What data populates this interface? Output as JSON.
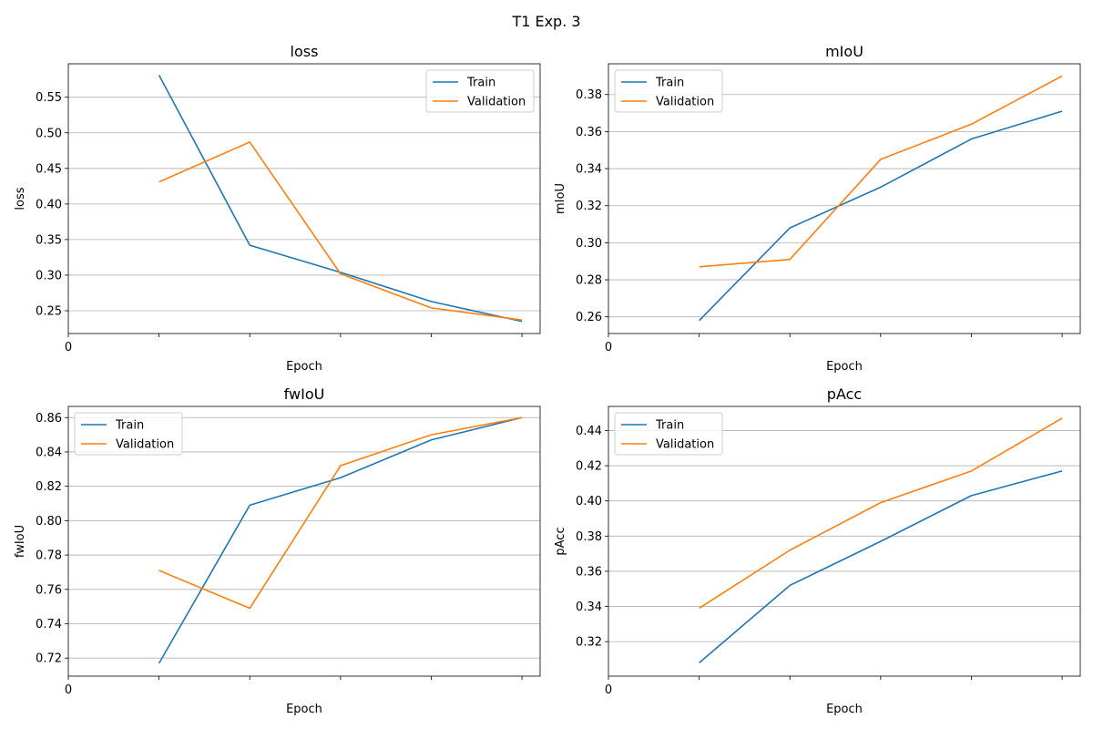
{
  "figure": {
    "title": "T1 Exp. 3"
  },
  "chart_data": [
    {
      "type": "line",
      "title": "loss",
      "xlabel": "Epoch",
      "ylabel": "loss",
      "x": [
        1,
        2,
        3,
        4,
        5
      ],
      "xlim": [
        0,
        5.2
      ],
      "x_tick_labels": [
        "0",
        "",
        "",
        "",
        "",
        ""
      ],
      "ylim": [
        0.218,
        0.597
      ],
      "y_ticks": [
        0.25,
        0.3,
        0.35,
        0.4,
        0.45,
        0.5,
        0.55
      ],
      "y_tick_labels": [
        "0.25",
        "0.30",
        "0.35",
        "0.40",
        "0.45",
        "0.50",
        "0.55"
      ],
      "grid": "y",
      "legend": "upper right",
      "series": [
        {
          "name": "Train",
          "color": "#1f77b4",
          "values": [
            0.581,
            0.342,
            0.304,
            0.263,
            0.235
          ]
        },
        {
          "name": "Validation",
          "color": "#ff7f0e",
          "values": [
            0.431,
            0.487,
            0.302,
            0.254,
            0.237
          ]
        }
      ]
    },
    {
      "type": "line",
      "title": "mIoU",
      "xlabel": "Epoch",
      "ylabel": "mIoU",
      "x": [
        1,
        2,
        3,
        4,
        5
      ],
      "xlim": [
        0,
        5.2
      ],
      "x_tick_labels": [
        "0",
        "",
        "",
        "",
        "",
        ""
      ],
      "ylim": [
        0.251,
        0.3966
      ],
      "y_ticks": [
        0.26,
        0.28,
        0.3,
        0.32,
        0.34,
        0.36,
        0.38
      ],
      "y_tick_labels": [
        "0.26",
        "0.28",
        "0.30",
        "0.32",
        "0.34",
        "0.36",
        "0.38"
      ],
      "grid": "y",
      "legend": "upper left",
      "series": [
        {
          "name": "Train",
          "color": "#1f77b4",
          "values": [
            0.258,
            0.308,
            0.33,
            0.356,
            0.371
          ]
        },
        {
          "name": "Validation",
          "color": "#ff7f0e",
          "values": [
            0.287,
            0.291,
            0.345,
            0.364,
            0.39
          ]
        }
      ]
    },
    {
      "type": "line",
      "title": "fwIoU",
      "xlabel": "Epoch",
      "ylabel": "fwIoU",
      "x": [
        1,
        2,
        3,
        4,
        5
      ],
      "xlim": [
        0,
        5.2
      ],
      "x_tick_labels": [
        "0",
        "",
        "",
        "",
        "",
        ""
      ],
      "ylim": [
        0.7095,
        0.8665
      ],
      "y_ticks": [
        0.72,
        0.74,
        0.76,
        0.78,
        0.8,
        0.82,
        0.84,
        0.86
      ],
      "y_tick_labels": [
        "0.72",
        "0.74",
        "0.76",
        "0.78",
        "0.80",
        "0.82",
        "0.84",
        "0.86"
      ],
      "grid": "y",
      "legend": "upper left",
      "series": [
        {
          "name": "Train",
          "color": "#1f77b4",
          "values": [
            0.717,
            0.809,
            0.825,
            0.847,
            0.86
          ]
        },
        {
          "name": "Validation",
          "color": "#ff7f0e",
          "values": [
            0.771,
            0.749,
            0.832,
            0.85,
            0.86
          ]
        }
      ]
    },
    {
      "type": "line",
      "title": "pAcc",
      "xlabel": "Epoch",
      "ylabel": "pAcc",
      "x": [
        1,
        2,
        3,
        4,
        5
      ],
      "xlim": [
        0,
        5.2
      ],
      "x_tick_labels": [
        "0",
        "",
        "",
        "",
        "",
        ""
      ],
      "ylim": [
        0.3004,
        0.4537
      ],
      "y_ticks": [
        0.32,
        0.34,
        0.36,
        0.38,
        0.4,
        0.42,
        0.44
      ],
      "y_tick_labels": [
        "0.32",
        "0.34",
        "0.36",
        "0.38",
        "0.40",
        "0.42",
        "0.44"
      ],
      "grid": "y",
      "legend": "upper left",
      "series": [
        {
          "name": "Train",
          "color": "#1f77b4",
          "values": [
            0.308,
            0.352,
            0.377,
            0.403,
            0.417
          ]
        },
        {
          "name": "Validation",
          "color": "#ff7f0e",
          "values": [
            0.339,
            0.372,
            0.399,
            0.417,
            0.447
          ]
        }
      ]
    }
  ]
}
